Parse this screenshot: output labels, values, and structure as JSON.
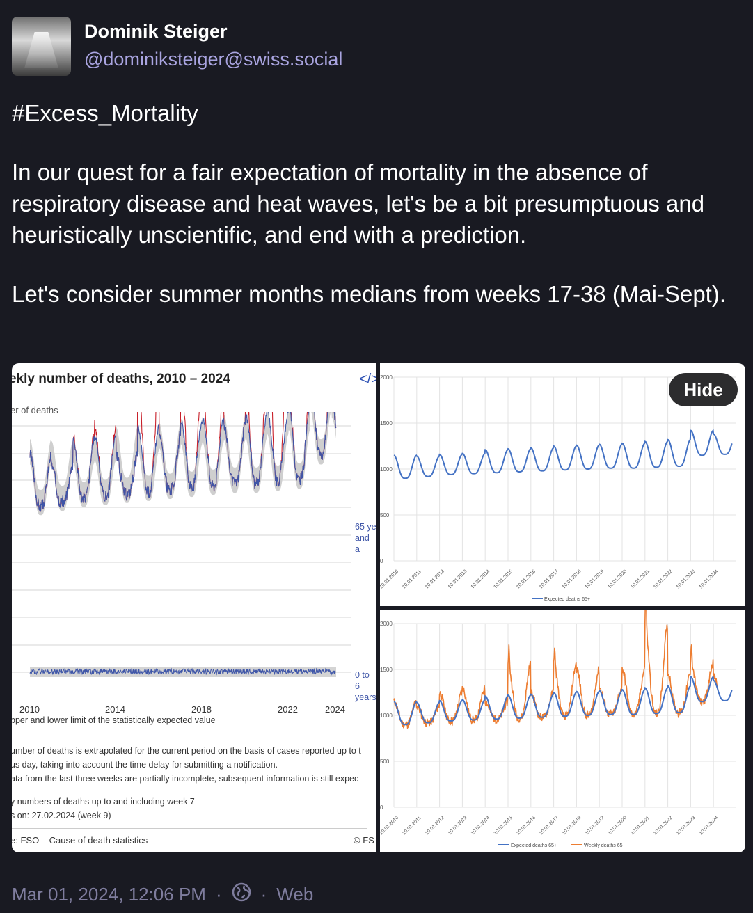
{
  "author": {
    "display_name": "Dominik Steiger",
    "handle": "@dominiksteiger@swiss.social"
  },
  "post": {
    "hashtag": "#Excess_Mortality",
    "paragraph1": "In our quest for a fair expectation of mortality in the absence of respiratory disease and heat waves, let's be a bit presumptuous and heuristically unscientific, and end with a prediction.",
    "paragraph2": "Let's consider summer months medians from weeks 17-38 (Mai-Sept)."
  },
  "media": {
    "hide_label": "Hide",
    "fso_chart": {
      "title": "ekly number of deaths, 2010 – 2024",
      "embed_icon": "</>",
      "y_label": "er of deaths",
      "series_label_65": [
        "65 ye",
        "and a"
      ],
      "series_label_0": [
        "0 to 6",
        "years"
      ],
      "x_ticks": [
        "2010",
        "2014",
        "2018",
        "2022",
        "2024"
      ],
      "legend_note": "pper and lower limit of the statistically expected value",
      "notes": [
        "umber of deaths is extrapolated for the current period on the basis of cases reported up to t",
        "us day, taking into account the time delay for submitting a notification.",
        "ata from the last three weeks are partially incomplete, subsequent information is still expec",
        "y numbers of deaths up to and including week 7",
        "s on: 27.02.2024 (week 9)"
      ],
      "source": "e: FSO – Cause of death statistics",
      "copyright": "© FS"
    }
  },
  "chart_data": [
    {
      "type": "line",
      "title": "ekly number of deaths, 2010 – 2024",
      "ylabel": "er of deaths",
      "x_ticks": [
        "2010",
        "2014",
        "2018",
        "2022",
        "2024"
      ],
      "series": [
        {
          "name": "65 ye and a",
          "note": "weekly deaths with expected band, spikes in winters 2015, 2017, 2020, 2020/21, 2022"
        },
        {
          "name": "0 to 6 years"
        }
      ],
      "legend": "right"
    },
    {
      "type": "line",
      "x": [
        "10.01.2010",
        "10.01.2011",
        "10.01.2012",
        "10.01.2013",
        "10.01.2014",
        "10.01.2015",
        "10.01.2016",
        "10.01.2017",
        "10.01.2018",
        "10.01.2019",
        "10.01.2020",
        "10.01.2021",
        "10.01.2022",
        "10.01.2023",
        "10.01.2024"
      ],
      "y_ticks": [
        0,
        500,
        1000,
        1500,
        2000
      ],
      "ylim": [
        0,
        2000
      ],
      "series": [
        {
          "name": "Expected deaths 65+",
          "color": "#4472c4",
          "winter_peaks": [
            1150,
            1140,
            1160,
            1170,
            1210,
            1220,
            1230,
            1250,
            1260,
            1270,
            1280,
            1300,
            1320,
            1420,
            1380
          ],
          "summer_troughs": [
            900,
            920,
            940,
            950,
            960,
            970,
            980,
            990,
            1000,
            1010,
            1010,
            1020,
            1030,
            1150,
            1160
          ]
        }
      ],
      "legend": "bottom"
    },
    {
      "type": "line",
      "x": [
        "10.01.2010",
        "10.01.2011",
        "10.01.2012",
        "10.01.2013",
        "10.01.2014",
        "10.01.2015",
        "10.01.2016",
        "10.01.2017",
        "10.01.2018",
        "10.01.2019",
        "10.01.2020",
        "10.01.2021",
        "10.01.2022",
        "10.01.2023",
        "10.01.2024"
      ],
      "y_ticks": [
        0,
        500,
        1000,
        1500,
        2000
      ],
      "ylim": [
        0,
        2000
      ],
      "series": [
        {
          "name": "Expected deaths 65+",
          "color": "#4472c4"
        },
        {
          "name": "Weekly deaths 65+",
          "color": "#ed7d31",
          "winter_peaks": [
            1150,
            1100,
            1250,
            1300,
            1150,
            1560,
            1250,
            1560,
            1500,
            1300,
            1500,
            1980,
            1450,
            1580,
            1420
          ]
        }
      ],
      "legend": "bottom"
    }
  ],
  "footer": {
    "timestamp": "Mar 01, 2024, 12:06 PM",
    "separator": "·",
    "visibility_icon": "globe-icon",
    "app": "Web"
  }
}
